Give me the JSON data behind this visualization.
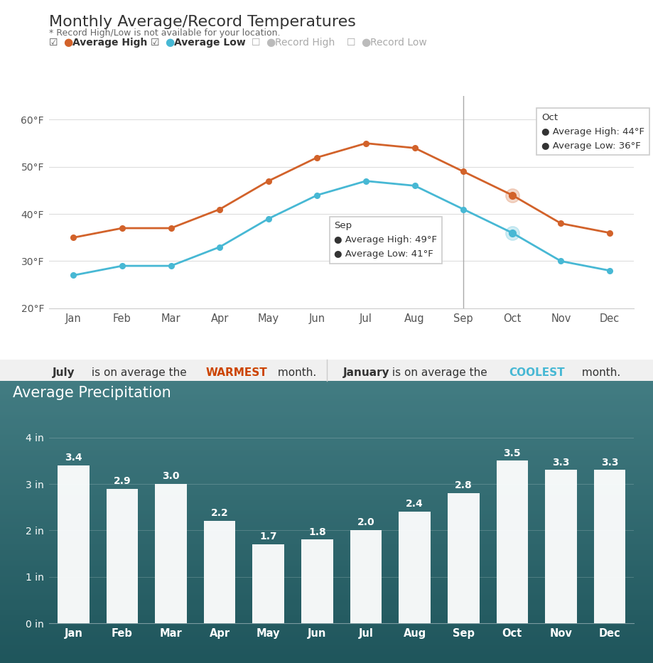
{
  "months": [
    "Jan",
    "Feb",
    "Mar",
    "Apr",
    "May",
    "Jun",
    "Jul",
    "Aug",
    "Sep",
    "Oct",
    "Nov",
    "Dec"
  ],
  "avg_high": [
    35,
    37,
    37,
    41,
    47,
    52,
    55,
    54,
    49,
    44,
    38,
    36
  ],
  "avg_low": [
    27,
    29,
    29,
    33,
    39,
    44,
    47,
    46,
    41,
    36,
    30,
    28
  ],
  "precipitation": [
    3.4,
    2.9,
    3.0,
    2.2,
    1.7,
    1.8,
    2.0,
    2.4,
    2.8,
    3.5,
    3.3,
    3.3
  ],
  "high_color": "#d2622a",
  "low_color": "#47b8d4",
  "bar_color": "#ffffff",
  "chart1_bg": "#ffffff",
  "title1": "Monthly Average/Record Temperatures",
  "subtitle1": "* Record High/Low is not available for your location.",
  "title2": "Average Precipitation",
  "warmest_month": "July",
  "coolest_month": "January",
  "warmest_color": "#cc4400",
  "coolest_color": "#47b8d4",
  "ylim_temp": [
    20,
    65
  ],
  "yticks_temp": [
    20,
    30,
    40,
    50,
    60
  ],
  "ylim_precip": [
    0,
    4.5
  ],
  "yticks_precip": [
    0,
    1,
    2,
    3,
    4
  ],
  "tooltip_sep_month": "Sep",
  "tooltip_sep_high": 49,
  "tooltip_sep_low": 41,
  "tooltip_oct_month": "Oct",
  "tooltip_oct_high": 44,
  "tooltip_oct_low": 36,
  "sep_idx": 8,
  "oct_idx": 9
}
